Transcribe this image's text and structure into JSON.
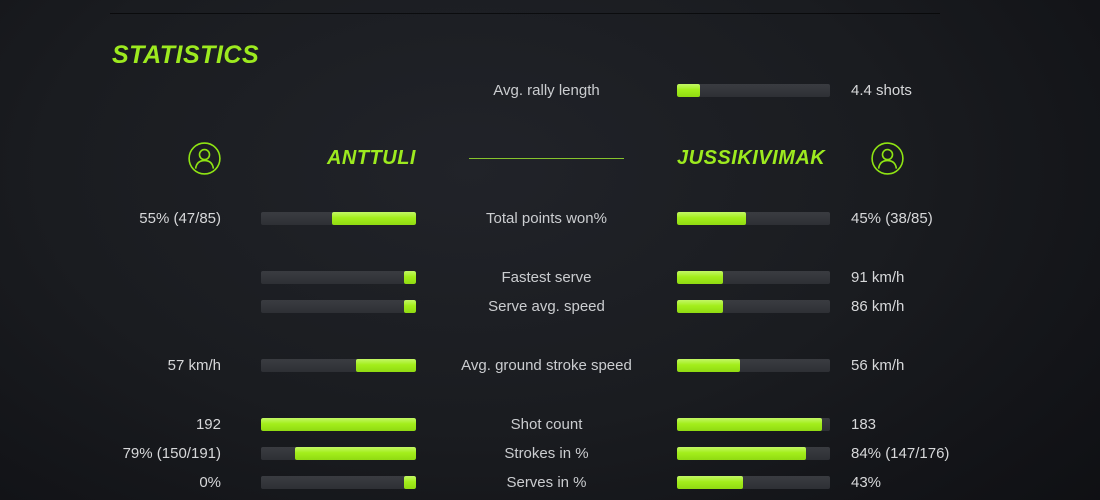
{
  "title": "STATISTICS",
  "players": {
    "left": {
      "name": "ANTTULI"
    },
    "right": {
      "name": "JUSSIKIVIMAK"
    }
  },
  "rally": {
    "label": "Avg. rally length",
    "right_value": "4.4 shots",
    "right_fill_pct": 15
  },
  "stats": [
    {
      "label": "Total points won%",
      "left": {
        "value": "55% (47/85)",
        "fill_pct": 54
      },
      "right": {
        "value": "45% (38/85)",
        "fill_pct": 45
      }
    },
    {
      "label": "Fastest serve",
      "left": {
        "value": "",
        "fill_pct": 8
      },
      "right": {
        "value": "91 km/h",
        "fill_pct": 30
      }
    },
    {
      "label": "Serve avg. speed",
      "left": {
        "value": "",
        "fill_pct": 8
      },
      "right": {
        "value": "86 km/h",
        "fill_pct": 30
      }
    },
    {
      "label": "Avg. ground stroke speed",
      "left": {
        "value": "57 km/h",
        "fill_pct": 39
      },
      "right": {
        "value": "56 km/h",
        "fill_pct": 41
      }
    },
    {
      "label": "Shot count",
      "left": {
        "value": "192",
        "fill_pct": 100
      },
      "right": {
        "value": "183",
        "fill_pct": 95
      }
    },
    {
      "label": "Strokes in %",
      "left": {
        "value": "79% (150/191)",
        "fill_pct": 78
      },
      "right": {
        "value": "84% (147/176)",
        "fill_pct": 84
      }
    },
    {
      "label": "Serves in %",
      "left": {
        "value": "0%",
        "fill_pct": 8
      },
      "right": {
        "value": "43%",
        "fill_pct": 43
      }
    }
  ],
  "colors": {
    "accent_green": "#a3ee1b",
    "bar_track": "#323338",
    "value_text": "#d7d8da",
    "background": "#16181c"
  }
}
